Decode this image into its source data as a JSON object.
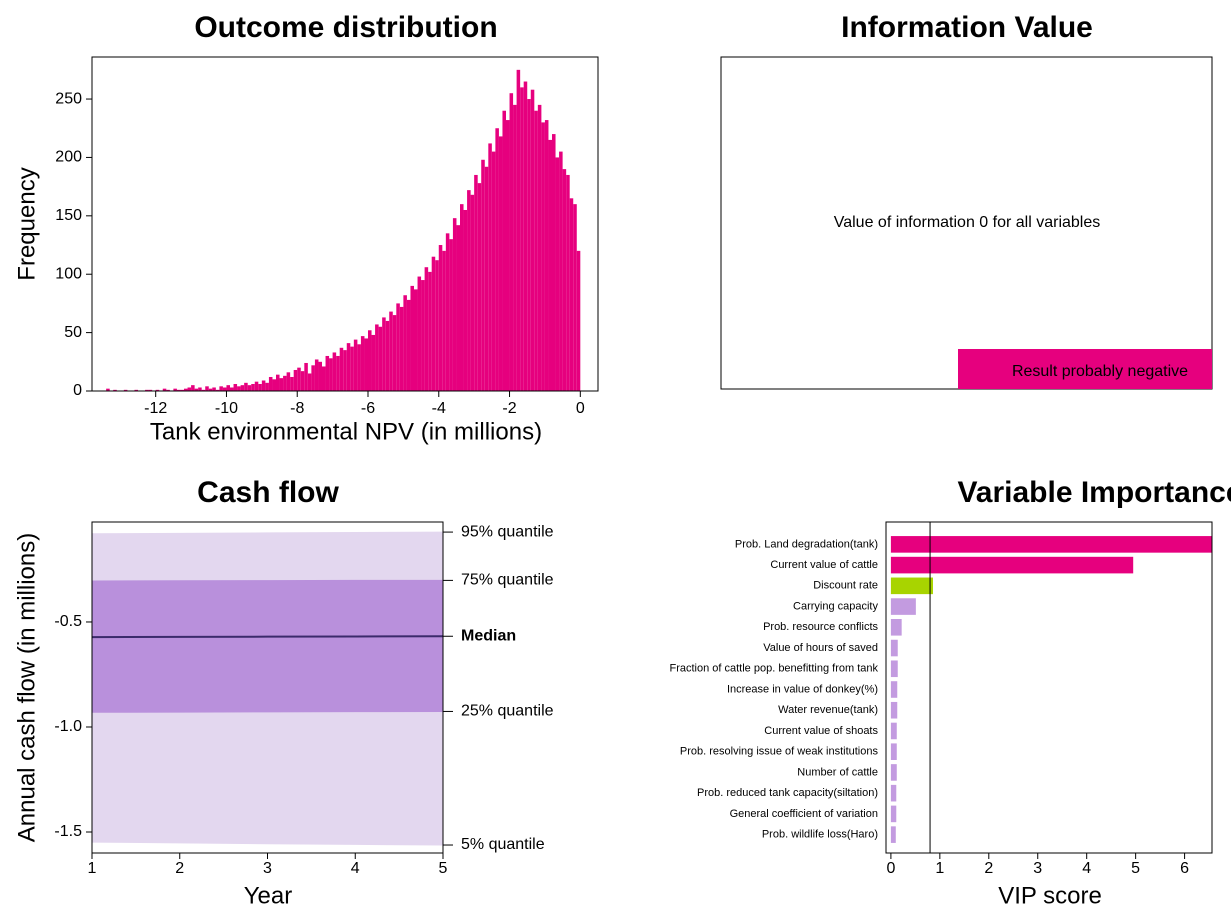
{
  "chart_data": [
    {
      "type": "histogram",
      "title": "Outcome distribution",
      "x_label": "Tank environmental NPV (in millions)",
      "y_label": "Frequency",
      "color": "#e6007e",
      "bins": [
        -13.5,
        -13.4,
        -13.3,
        -13.2,
        -13.1,
        -13,
        -12.9,
        -12.8,
        -12.7,
        -12.6,
        -12.5,
        -12.4,
        -12.3,
        -12.2,
        -12.1,
        -12,
        -11.9,
        -11.8,
        -11.7,
        -11.6,
        -11.5,
        -11.4,
        -11.3,
        -11.2,
        -11.1,
        -11,
        -10.9,
        -10.8,
        -10.7,
        -10.6,
        -10.5,
        -10.4,
        -10.3,
        -10.2,
        -10.1,
        -10,
        -9.9,
        -9.8,
        -9.7,
        -9.6,
        -9.5,
        -9.4,
        -9.3,
        -9.2,
        -9.1,
        -9,
        -8.9,
        -8.8,
        -8.7,
        -8.6,
        -8.5,
        -8.4,
        -8.3,
        -8.2,
        -8.1,
        -8,
        -7.9,
        -7.8,
        -7.7,
        -7.6,
        -7.5,
        -7.4,
        -7.3,
        -7.2,
        -7.1,
        -7,
        -6.9,
        -6.8,
        -6.7,
        -6.6,
        -6.5,
        -6.4,
        -6.3,
        -6.2,
        -6.1,
        -6,
        -5.9,
        -5.8,
        -5.7,
        -5.6,
        -5.5,
        -5.4,
        -5.3,
        -5.2,
        -5.1,
        -5,
        -4.9,
        -4.8,
        -4.7,
        -4.6,
        -4.5,
        -4.4,
        -4.3,
        -4.2,
        -4.1,
        -4,
        -3.9,
        -3.8,
        -3.7,
        -3.6,
        -3.5,
        -3.4,
        -3.3,
        -3.2,
        -3.1,
        -3,
        -2.9,
        -2.8,
        -2.7,
        -2.6,
        -2.5,
        -2.4,
        -2.3,
        -2.2,
        -2.1,
        -2,
        -1.9,
        -1.8,
        -1.7,
        -1.6,
        -1.5,
        -1.4,
        -1.3,
        -1.2,
        -1.1,
        -1,
        -0.9,
        -0.8,
        -0.7,
        -0.6,
        -0.5,
        -0.4,
        -0.3,
        -0.2,
        -0.1,
        0
      ],
      "values": [
        0,
        2,
        0,
        1,
        0,
        0,
        1,
        0,
        0,
        1,
        0,
        0,
        1,
        1,
        0,
        1,
        0,
        2,
        1,
        0,
        2,
        1,
        1,
        2,
        3,
        5,
        2,
        3,
        1,
        4,
        2,
        3,
        1,
        4,
        3,
        5,
        3,
        6,
        4,
        5,
        7,
        5,
        6,
        8,
        6,
        9,
        7,
        12,
        10,
        14,
        11,
        13,
        16,
        12,
        18,
        20,
        17,
        24,
        15,
        22,
        27,
        25,
        21,
        30,
        28,
        33,
        30,
        37,
        35,
        41,
        38,
        44,
        40,
        47,
        45,
        52,
        48,
        57,
        55,
        63,
        60,
        68,
        65,
        75,
        72,
        82,
        78,
        90,
        87,
        98,
        95,
        106,
        102,
        115,
        112,
        125,
        120,
        135,
        130,
        148,
        142,
        160,
        155,
        172,
        168,
        185,
        178,
        198,
        192,
        212,
        205,
        225,
        218,
        240,
        232,
        255,
        245,
        275,
        260,
        265,
        250,
        258,
        240,
        245,
        230,
        232,
        215,
        220,
        200,
        205,
        190,
        185,
        165,
        160,
        120
      ],
      "xlim": [
        -13.8,
        0.5
      ],
      "xticks": [
        -12,
        -10,
        -8,
        -6,
        -4,
        -2,
        0
      ],
      "ylim": [
        0,
        286
      ],
      "yticks": [
        0,
        50,
        100,
        150,
        200,
        250
      ]
    },
    {
      "type": "note",
      "title": "Information Value",
      "message": "Value of information 0 for all variables",
      "legend": "Result probably negative",
      "color": "#e6007e"
    },
    {
      "type": "quantile-band",
      "title": "Cash flow",
      "x_label": "Year",
      "y_label": "Annual cash flow (in millions)",
      "x": [
        1,
        2,
        3,
        4,
        5
      ],
      "series": [
        {
          "name": "95% quantile",
          "color": "#e3d7ef",
          "values": [
            -0.08,
            -0.078,
            -0.076,
            -0.074,
            -0.072
          ]
        },
        {
          "name": "75% quantile",
          "color": "#b990dc",
          "values": [
            -0.305,
            -0.304,
            -0.303,
            -0.302,
            -0.302
          ]
        },
        {
          "name": "Median",
          "color": "#3b2a6b",
          "values": [
            -0.572,
            -0.571,
            -0.57,
            -0.569,
            -0.568
          ]
        },
        {
          "name": "25% quantile",
          "color": "#b990dc",
          "values": [
            -0.93,
            -0.929,
            -0.928,
            -0.927,
            -0.926
          ]
        },
        {
          "name": "5% quantile",
          "color": "#e3d7ef",
          "values": [
            -1.548,
            -1.552,
            -1.556,
            -1.559,
            -1.562
          ]
        }
      ],
      "xlim": [
        1,
        5
      ],
      "xticks": [
        1,
        2,
        3,
        4,
        5
      ],
      "ylim": [
        -1.6,
        -0.024
      ],
      "yticks": [
        -1.5,
        {
          "value": -1,
          "label": "-1.0"
        },
        -0.5
      ]
    },
    {
      "type": "bar",
      "orientation": "horizontal",
      "title": "Variable Importance",
      "x_label": "VIP score",
      "categories": [
        "Prob. Land degradation(tank)",
        "Current value of cattle",
        "Discount rate",
        "Carrying capacity ",
        "Prob. resource conflicts",
        "Value of hours of saved",
        "Fraction of cattle pop. benefitting from tank",
        "Increase in value of donkey(%)",
        "Water revenue(tank)",
        "Current value of shoats",
        "Prob. resolving issue of weak institutions",
        "Number of cattle",
        "Prob. reduced tank capacity(siltation)",
        "General coefficient of variation",
        "Prob. wildlife loss(Haro)"
      ],
      "values": [
        6.56,
        4.95,
        0.86,
        0.51,
        0.22,
        0.14,
        0.14,
        0.13,
        0.13,
        0.12,
        0.12,
        0.12,
        0.11,
        0.11,
        0.1
      ],
      "colors": [
        "#e6007e",
        "#e6007e",
        "#a8d400",
        "#c39be0",
        "#c39be0",
        "#c39be0",
        "#c39be0",
        "#c39be0",
        "#c39be0",
        "#c39be0",
        "#c39be0",
        "#c39be0",
        "#c39be0",
        "#c39be0",
        "#c39be0"
      ],
      "threshold": 0.8,
      "xlim": [
        -0.1,
        6.56
      ],
      "xticks": [
        0,
        1,
        2,
        3,
        4,
        5,
        6
      ]
    }
  ]
}
